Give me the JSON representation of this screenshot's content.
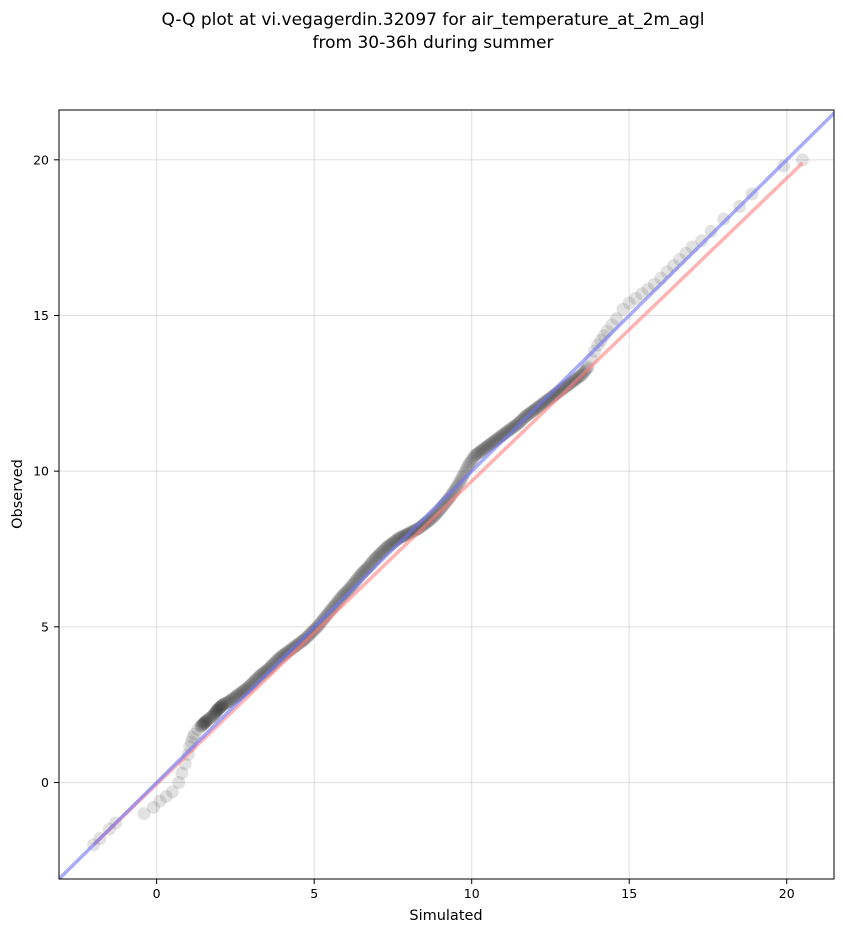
{
  "chart_data": {
    "type": "scatter",
    "title_line1": "Q-Q plot at vi.vegagerdin.32097 for air_temperature_at_2m_agl",
    "title_line2": "from 30-36h during summer",
    "xlabel": "Simulated",
    "ylabel": "Observed",
    "xlim": [
      -3.1,
      21.5
    ],
    "ylim": [
      -3.1,
      21.6
    ],
    "xticks": [
      0,
      5,
      10,
      15,
      20
    ],
    "yticks": [
      0,
      5,
      10,
      15,
      20
    ],
    "xtick_labels": [
      "0",
      "5",
      "10",
      "15",
      "20"
    ],
    "ytick_labels": [
      "0",
      "5",
      "10",
      "15",
      "20"
    ],
    "grid": true,
    "colors": {
      "points": "#333333",
      "identity_line": "#6f74f5",
      "fit_line": "#ff8080"
    },
    "identity_line": {
      "x": [
        -3.1,
        21.5
      ],
      "y": [
        -3.1,
        21.5
      ]
    },
    "fit_line": {
      "x": [
        -2.0,
        20.5
      ],
      "y": [
        -2.0,
        19.9
      ]
    },
    "points": {
      "x": [
        -2.0,
        -1.8,
        -1.5,
        -1.3,
        -0.4,
        -0.1,
        0.1,
        0.3,
        0.5,
        0.7,
        0.8,
        0.9,
        1.0,
        1.05,
        1.1,
        1.15,
        1.2,
        1.3,
        1.4,
        1.5,
        1.6,
        1.8,
        1.9,
        2.0,
        2.1,
        2.3,
        2.5,
        2.7,
        2.9,
        3.1,
        3.3,
        3.5,
        3.7,
        3.9,
        4.1,
        4.3,
        4.5,
        4.7,
        4.9,
        5.1,
        5.3,
        5.5,
        5.7,
        5.9,
        6.1,
        6.3,
        6.5,
        6.7,
        6.9,
        7.1,
        7.3,
        7.5,
        7.7,
        7.9,
        8.1,
        8.3,
        8.5,
        8.7,
        8.9,
        9.1,
        9.3,
        9.5,
        9.7,
        9.9,
        10.1,
        10.3,
        10.5,
        10.7,
        10.9,
        11.1,
        11.3,
        11.5,
        11.7,
        11.9,
        12.1,
        12.3,
        12.5,
        12.7,
        12.9,
        13.1,
        13.3,
        13.5,
        13.7,
        13.8,
        13.9,
        14.0,
        14.1,
        14.2,
        14.3,
        14.45,
        14.6,
        14.8,
        15.0,
        15.2,
        15.4,
        15.6,
        15.8,
        16.0,
        16.2,
        16.4,
        16.6,
        16.8,
        17.0,
        17.3,
        17.6,
        18.0,
        18.5,
        18.9,
        19.9,
        20.5
      ],
      "y": [
        -2.0,
        -1.8,
        -1.5,
        -1.3,
        -1.0,
        -0.8,
        -0.6,
        -0.45,
        -0.3,
        0.0,
        0.3,
        0.6,
        0.9,
        1.15,
        1.3,
        1.45,
        1.55,
        1.7,
        1.8,
        1.9,
        2.0,
        2.15,
        2.3,
        2.4,
        2.5,
        2.6,
        2.75,
        2.9,
        3.05,
        3.25,
        3.45,
        3.6,
        3.8,
        4.0,
        4.15,
        4.3,
        4.45,
        4.6,
        4.8,
        5.0,
        5.25,
        5.5,
        5.75,
        6.0,
        6.2,
        6.45,
        6.7,
        6.9,
        7.15,
        7.35,
        7.55,
        7.7,
        7.85,
        7.95,
        8.05,
        8.15,
        8.3,
        8.45,
        8.65,
        8.9,
        9.15,
        9.45,
        9.8,
        10.2,
        10.5,
        10.65,
        10.8,
        10.95,
        11.1,
        11.25,
        11.4,
        11.55,
        11.75,
        11.9,
        12.05,
        12.2,
        12.35,
        12.5,
        12.65,
        12.8,
        12.95,
        13.1,
        13.35,
        13.6,
        13.85,
        14.05,
        14.2,
        14.35,
        14.5,
        14.7,
        14.9,
        15.2,
        15.4,
        15.55,
        15.7,
        15.85,
        16.0,
        16.2,
        16.4,
        16.6,
        16.8,
        17.0,
        17.2,
        17.4,
        17.7,
        18.1,
        18.5,
        18.9,
        19.8,
        20.0
      ]
    }
  }
}
